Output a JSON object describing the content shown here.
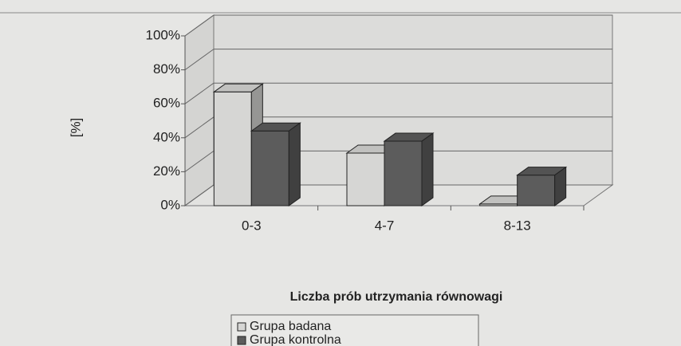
{
  "chart_data": {
    "type": "bar3d",
    "y_label": "[%]",
    "x_label": "Liczba prób utrzymania równowagi",
    "categories": [
      "0-3",
      "4-7",
      "8-13"
    ],
    "series": [
      {
        "name": "Grupa badana",
        "color": "#d6d6d4",
        "values": [
          67,
          31,
          1
        ]
      },
      {
        "name": "Grupa kontrolna",
        "color": "#5c5c5c",
        "values": [
          44,
          38,
          18
        ]
      }
    ],
    "ylim": [
      0,
      100
    ],
    "yticks": [
      {
        "value": 0,
        "label": "0%"
      },
      {
        "value": 20,
        "label": "20%"
      },
      {
        "value": 40,
        "label": "40%"
      },
      {
        "value": 60,
        "label": "60%"
      },
      {
        "value": 80,
        "label": "80%"
      },
      {
        "value": 100,
        "label": "100%"
      }
    ],
    "grid": true
  }
}
